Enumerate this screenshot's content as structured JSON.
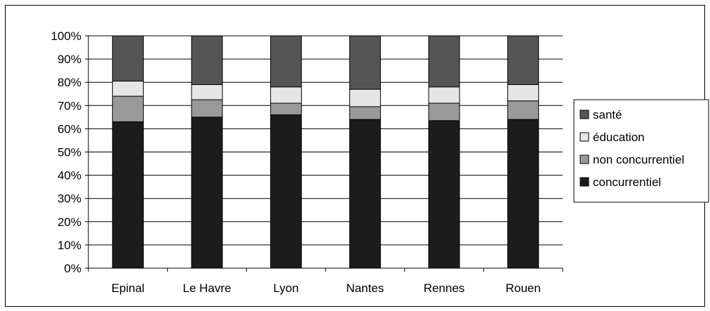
{
  "chart_data": {
    "type": "bar",
    "stacked": "percent",
    "categories": [
      "Epinal",
      "Le Havre",
      "Lyon",
      "Nantes",
      "Rennes",
      "Rouen"
    ],
    "series": [
      {
        "name": "concurrentiel",
        "color": "#1c1c1c",
        "values": [
          63,
          65,
          66,
          64,
          63.5,
          64
        ]
      },
      {
        "name": "non concurrentiel",
        "color": "#999999",
        "values": [
          11,
          7.5,
          5,
          5.5,
          7.5,
          8
        ]
      },
      {
        "name": "éducation",
        "color": "#e6e6e6",
        "values": [
          6.5,
          6.5,
          7,
          7.5,
          7,
          7
        ]
      },
      {
        "name": "santé",
        "color": "#555555",
        "values": [
          19.5,
          21,
          22,
          23,
          22,
          21
        ]
      }
    ],
    "ylim": [
      0,
      100
    ],
    "yticks": [
      "0%",
      "10%",
      "20%",
      "30%",
      "40%",
      "50%",
      "60%",
      "70%",
      "80%",
      "90%",
      "100%"
    ],
    "grid": true,
    "legend": "right"
  }
}
